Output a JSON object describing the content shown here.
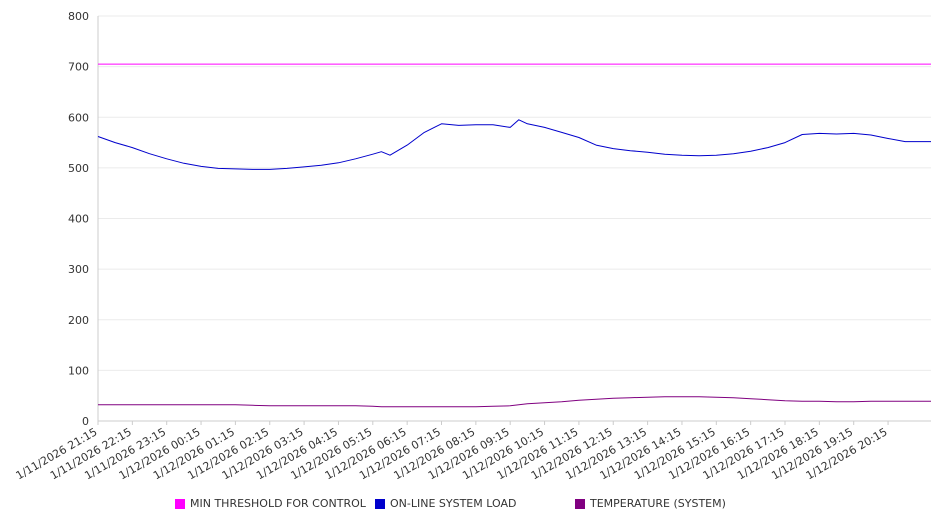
{
  "chart_data": {
    "type": "line",
    "title": "",
    "xlabel": "",
    "ylabel": "",
    "ylim": [
      0,
      800
    ],
    "yticks": [
      0,
      100,
      200,
      300,
      400,
      500,
      600,
      700,
      800
    ],
    "grid": true,
    "legend_position": "bottom",
    "x_tick_labels": [
      "1/11/2026 21:15",
      "1/11/2026 22:15",
      "1/11/2026 23:15",
      "1/12/2026 00:15",
      "1/12/2026 01:15",
      "1/12/2026 02:15",
      "1/12/2026 03:15",
      "1/12/2026 04:15",
      "1/12/2026 05:15",
      "1/12/2026 06:15",
      "1/12/2026 07:15",
      "1/12/2026 08:15",
      "1/12/2026 09:15",
      "1/12/2026 10:15",
      "1/12/2026 11:15",
      "1/12/2026 12:15",
      "1/12/2026 13:15",
      "1/12/2026 14:15",
      "1/12/2026 15:15",
      "1/12/2026 16:15",
      "1/12/2026 17:15",
      "1/12/2026 18:15",
      "1/12/2026 19:15",
      "1/12/2026 20:15"
    ],
    "x": [
      "1/11/2026 21:15",
      "1/11/2026 21:45",
      "1/11/2026 22:15",
      "1/11/2026 22:45",
      "1/11/2026 23:15",
      "1/11/2026 23:45",
      "1/12/2026 00:15",
      "1/12/2026 00:45",
      "1/12/2026 01:15",
      "1/12/2026 01:45",
      "1/12/2026 02:15",
      "1/12/2026 02:45",
      "1/12/2026 03:15",
      "1/12/2026 03:45",
      "1/12/2026 04:15",
      "1/12/2026 04:45",
      "1/12/2026 05:15",
      "1/12/2026 05:30",
      "1/12/2026 05:45",
      "1/12/2026 06:15",
      "1/12/2026 06:45",
      "1/12/2026 07:15",
      "1/12/2026 07:45",
      "1/12/2026 08:15",
      "1/12/2026 08:45",
      "1/12/2026 09:15",
      "1/12/2026 09:30",
      "1/12/2026 09:45",
      "1/12/2026 10:15",
      "1/12/2026 10:45",
      "1/12/2026 11:15",
      "1/12/2026 11:45",
      "1/12/2026 12:15",
      "1/12/2026 12:45",
      "1/12/2026 13:15",
      "1/12/2026 13:45",
      "1/12/2026 14:15",
      "1/12/2026 14:45",
      "1/12/2026 15:15",
      "1/12/2026 15:45",
      "1/12/2026 16:15",
      "1/12/2026 16:45",
      "1/12/2026 17:15",
      "1/12/2026 17:45",
      "1/12/2026 18:15",
      "1/12/2026 18:45",
      "1/12/2026 19:15",
      "1/12/2026 19:45",
      "1/12/2026 20:15",
      "1/12/2026 20:45"
    ],
    "series": [
      {
        "name": "MIN THRESHOLD FOR CONTROL",
        "color": "#ff00ff",
        "values": [
          705,
          705,
          705,
          705,
          705,
          705,
          705,
          705,
          705,
          705,
          705,
          705,
          705,
          705,
          705,
          705,
          705,
          705,
          705,
          705,
          705,
          705,
          705,
          705,
          705,
          705,
          705,
          705,
          705,
          705,
          705,
          705,
          705,
          705,
          705,
          705,
          705,
          705,
          705,
          705,
          705,
          705,
          705,
          705,
          705,
          705,
          705,
          705,
          705,
          705
        ]
      },
      {
        "name": "ON-LINE SYSTEM LOAD",
        "color": "#0000cc",
        "values": [
          562,
          550,
          540,
          528,
          518,
          509,
          503,
          499,
          498,
          497,
          497,
          499,
          502,
          505,
          510,
          518,
          527,
          532,
          525,
          545,
          570,
          587,
          584,
          585,
          585,
          580,
          595,
          587,
          580,
          570,
          560,
          545,
          538,
          534,
          531,
          527,
          525,
          524,
          525,
          528,
          533,
          540,
          550,
          566,
          568,
          567,
          568,
          565,
          558,
          552
        ]
      },
      {
        "name": "TEMPERATURE (SYSTEM)",
        "color": "#800080",
        "values": [
          32,
          32,
          32,
          32,
          32,
          32,
          32,
          32,
          32,
          31,
          30,
          30,
          30,
          30,
          30,
          30,
          29,
          28,
          28,
          28,
          28,
          28,
          28,
          28,
          29,
          30,
          32,
          34,
          36,
          38,
          41,
          43,
          45,
          46,
          47,
          48,
          48,
          48,
          47,
          46,
          44,
          42,
          40,
          39,
          39,
          38,
          38,
          39,
          39,
          39
        ]
      }
    ]
  }
}
